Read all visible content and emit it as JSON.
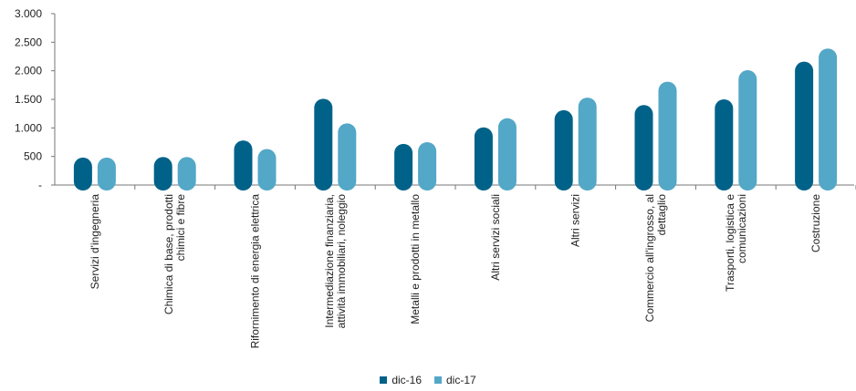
{
  "chart_data": {
    "type": "bar",
    "title": "",
    "xlabel": "",
    "ylabel": "",
    "ylim": [
      0,
      3000
    ],
    "yticks": [
      0,
      500,
      1000,
      1500,
      2000,
      2500,
      3000
    ],
    "ytick_labels": [
      "-",
      "500",
      "1.000",
      "1.500",
      "2.000",
      "2.500",
      "3.000"
    ],
    "categories": [
      [
        "Servizi d'ingegneria"
      ],
      [
        "Chimica di base, prodotti",
        "chimici e fibre"
      ],
      [
        "Rifornimento di energia elettrica"
      ],
      [
        "Intermediazione finanziaria,",
        "attività immobiliari, noleggio"
      ],
      [
        "Metalli e prodotti in metallo"
      ],
      [
        "Altri servizi sociali"
      ],
      [
        "Altri servizi"
      ],
      [
        "Commercio all'ingrosso, al",
        "dettaglio"
      ],
      [
        "Trasporti, logistica e",
        "comunicazioni"
      ],
      [
        "Costruzione"
      ]
    ],
    "series": [
      {
        "name": "dic-16",
        "color": "#006289",
        "values": [
          480,
          490,
          780,
          1510,
          720,
          1010,
          1310,
          1400,
          1500,
          2160
        ]
      },
      {
        "name": "dic-17",
        "color": "#53a7c7",
        "values": [
          480,
          490,
          630,
          1080,
          750,
          1170,
          1530,
          1810,
          2010,
          2390
        ]
      }
    ],
    "grid": false,
    "legend_position": "bottom"
  }
}
